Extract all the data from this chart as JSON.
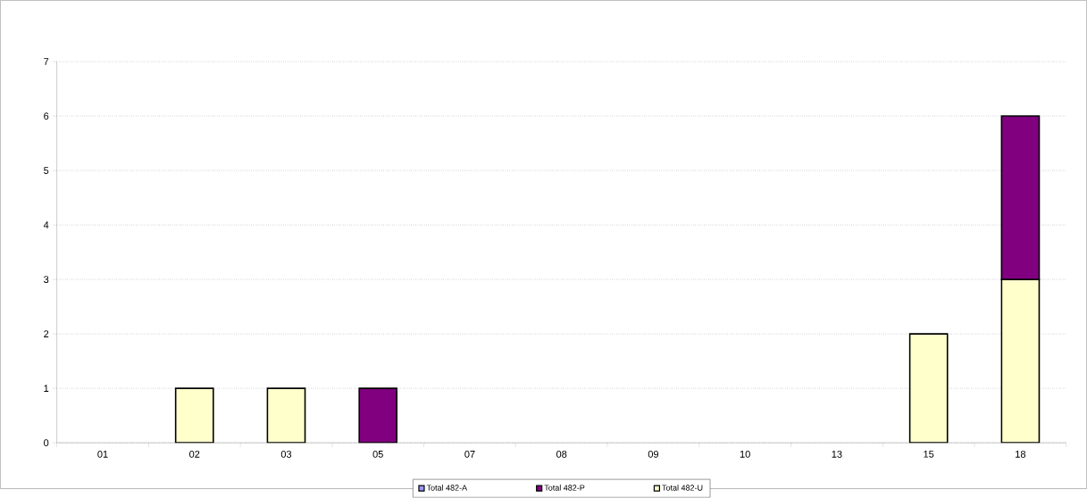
{
  "chart_data": {
    "type": "bar",
    "stacked": true,
    "categories": [
      "01",
      "02",
      "03",
      "05",
      "07",
      "08",
      "09",
      "10",
      "13",
      "15",
      "18"
    ],
    "series": [
      {
        "name": "Total 482-U",
        "color": "#ffffcc",
        "values": [
          0,
          1,
          1,
          0,
          0,
          0,
          0,
          0,
          0,
          2,
          3
        ]
      },
      {
        "name": "Total 482-P",
        "color": "#800080",
        "values": [
          0,
          0,
          0,
          1,
          0,
          0,
          0,
          0,
          0,
          0,
          3
        ]
      },
      {
        "name": "Total 482-A",
        "color": "#9999ff",
        "values": [
          0,
          0,
          0,
          0,
          0,
          0,
          0,
          0,
          0,
          0,
          0
        ]
      }
    ],
    "ylim": [
      0,
      7
    ],
    "yticks": [
      0,
      1,
      2,
      3,
      4,
      5,
      6,
      7
    ],
    "grid": "y",
    "legend": "bottom"
  }
}
